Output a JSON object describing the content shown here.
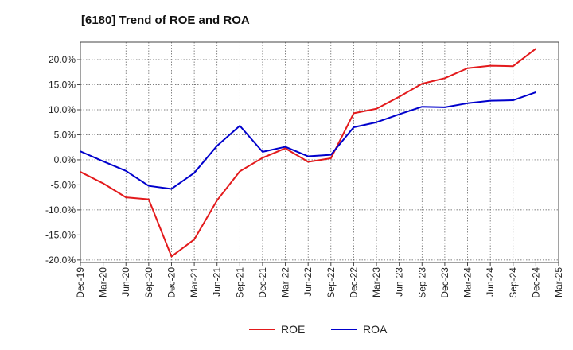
{
  "chart_data": {
    "type": "line",
    "title": "[6180]  Trend of ROE and ROA",
    "xlabel": "",
    "ylabel": "",
    "categories": [
      "Dec-19",
      "Mar-20",
      "Jun-20",
      "Sep-20",
      "Dec-20",
      "Mar-21",
      "Jun-21",
      "Sep-21",
      "Dec-21",
      "Mar-22",
      "Jun-22",
      "Sep-22",
      "Dec-22",
      "Mar-23",
      "Jun-23",
      "Sep-23",
      "Dec-23",
      "Mar-24",
      "Jun-24",
      "Sep-24",
      "Dec-24",
      "Mar-25"
    ],
    "ylim": [
      -20.5,
      23.5
    ],
    "yticks": [
      20,
      15,
      10,
      5,
      0,
      -5,
      -10,
      -15,
      -20
    ],
    "ytick_labels": [
      "20.0%",
      "15.0%",
      "10.0%",
      "5.0%",
      "0.0%",
      "-5.0%",
      "-10.0%",
      "-15.0%",
      "-20.0%"
    ],
    "grid": true,
    "legend_position": "bottom",
    "series": [
      {
        "name": "ROE",
        "color": "#e31a1c",
        "values": [
          -2.4,
          -4.7,
          -7.5,
          -7.9,
          -19.3,
          -15.9,
          -8.1,
          -2.3,
          0.4,
          2.3,
          -0.4,
          0.3,
          9.3,
          10.2,
          12.6,
          15.2,
          16.3,
          18.3,
          18.8,
          18.7,
          22.2,
          null
        ]
      },
      {
        "name": "ROA",
        "color": "#0000cc",
        "values": [
          1.7,
          -0.3,
          -2.2,
          -5.2,
          -5.8,
          -2.6,
          2.8,
          6.8,
          1.6,
          2.6,
          0.7,
          1.0,
          6.5,
          7.5,
          9.1,
          10.6,
          10.5,
          11.3,
          11.8,
          11.9,
          13.5,
          null
        ]
      }
    ]
  }
}
